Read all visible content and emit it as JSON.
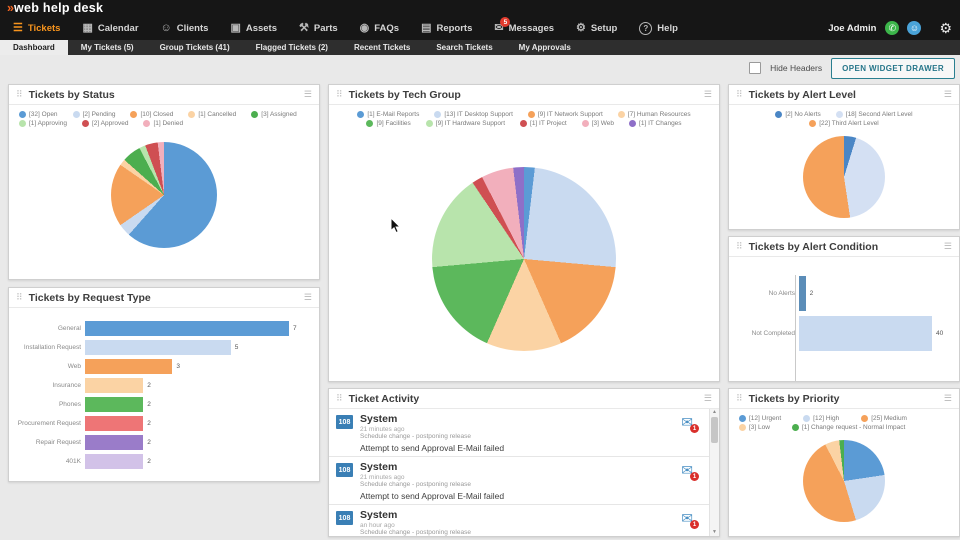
{
  "icons": {
    "drag": "⠿",
    "menu": "☰",
    "mail": "✉",
    "arrow_up": "▲",
    "arrow_down": "▼",
    "logo_flame": "»"
  },
  "topbar": {
    "logo_text": "web help desk",
    "user_name": "Joe Admin",
    "nav": [
      {
        "label": "Tickets",
        "glyph": "☰",
        "icon": "tickets-icon",
        "active": true
      },
      {
        "label": "Calendar",
        "glyph": "▦",
        "icon": "calendar-icon"
      },
      {
        "label": "Clients",
        "glyph": "☺",
        "icon": "clients-icon"
      },
      {
        "label": "Assets",
        "glyph": "▣",
        "icon": "assets-icon"
      },
      {
        "label": "Parts",
        "glyph": "⚒",
        "icon": "parts-icon"
      },
      {
        "label": "FAQs",
        "glyph": "◉",
        "icon": "faqs-icon"
      },
      {
        "label": "Reports",
        "glyph": "▤",
        "icon": "reports-icon"
      },
      {
        "label": "Messages",
        "glyph": "✉",
        "icon": "messages-icon",
        "badge": "5"
      },
      {
        "label": "Setup",
        "glyph": "⚙",
        "icon": "setup-icon"
      },
      {
        "label": "Help",
        "glyph": "?",
        "icon": "help-icon",
        "circled": true
      }
    ],
    "user_icons": [
      {
        "name": "availability-phone-icon",
        "glyph": "✆",
        "bg": "#3cb54a"
      },
      {
        "name": "account-person-icon",
        "glyph": "☺",
        "bg": "#4aa3d8"
      }
    ]
  },
  "tabs": [
    {
      "label": "Dashboard",
      "active": true
    },
    {
      "label": "My Tickets (5)"
    },
    {
      "label": "Group Tickets (41)"
    },
    {
      "label": "Flagged Tickets (2)"
    },
    {
      "label": "Recent Tickets"
    },
    {
      "label": "Search Tickets"
    },
    {
      "label": "My Approvals"
    }
  ],
  "toolbar": {
    "hide_headers_label": "Hide Headers",
    "open_widget_drawer_label": "OPEN WIDGET DRAWER"
  },
  "chart_data": [
    {
      "id": "status",
      "type": "pie",
      "title": "Tickets by Status",
      "legend_position": "top",
      "series": [
        {
          "label": "Open",
          "value": 32,
          "color": "#5b9bd5"
        },
        {
          "label": "Pending",
          "value": 2,
          "color": "#c9daf0"
        },
        {
          "label": "Closed",
          "value": 10,
          "color": "#f5a15a"
        },
        {
          "label": "Cancelled",
          "value": 1,
          "color": "#fbd3a4"
        },
        {
          "label": "Assigned",
          "value": 3,
          "color": "#4cae4f"
        },
        {
          "label": "Approving",
          "value": 1,
          "color": "#b8e4ac"
        },
        {
          "label": "Approved",
          "value": 2,
          "color": "#cf4f52"
        },
        {
          "label": "Denied",
          "value": 1,
          "color": "#f2afbc"
        }
      ]
    },
    {
      "id": "techgroup",
      "type": "pie",
      "title": "Tickets by Tech Group",
      "legend_position": "top",
      "series": [
        {
          "label": "E-Mail Reports",
          "value": 1,
          "color": "#5b9bd5"
        },
        {
          "label": "IT Desktop Support",
          "value": 13,
          "color": "#c9daf0"
        },
        {
          "label": "IT Network Support",
          "value": 9,
          "color": "#f5a15a"
        },
        {
          "label": "Human Resources",
          "value": 7,
          "color": "#fbd3a4"
        },
        {
          "label": "Facilities",
          "value": 9,
          "color": "#5cb85c"
        },
        {
          "label": "IT Hardware Support",
          "value": 9,
          "color": "#b8e4ac"
        },
        {
          "label": "IT Project",
          "value": 1,
          "color": "#cf4f52"
        },
        {
          "label": "Web",
          "value": 3,
          "color": "#f2afbc"
        },
        {
          "label": "IT Changes",
          "value": 1,
          "color": "#8e6fc8"
        }
      ]
    },
    {
      "id": "alertlevel",
      "type": "pie",
      "title": "Tickets by Alert Level",
      "legend_position": "top",
      "series": [
        {
          "label": "No Alerts",
          "value": 2,
          "color": "#4a86c5"
        },
        {
          "label": "Second Alert Level",
          "value": 18,
          "color": "#d4e0f3"
        },
        {
          "label": "Third Alert Level",
          "value": 22,
          "color": "#f5a15a"
        }
      ]
    },
    {
      "id": "alertcond",
      "type": "bar",
      "title": "Tickets by Alert Condition",
      "xlim": [
        0,
        40
      ],
      "grid": false,
      "series": [
        {
          "label": "No Alerts",
          "value": 2,
          "color": "#5b8db8"
        },
        {
          "label": "Not Completed",
          "value": 40,
          "color": "#c9daf0"
        }
      ]
    },
    {
      "id": "reqtype",
      "type": "bar",
      "title": "Tickets by Request Type",
      "xlim": [
        0,
        7
      ],
      "grid": false,
      "series": [
        {
          "label": "General",
          "value": 7,
          "color": "#5b9bd5"
        },
        {
          "label": "Installation Request",
          "value": 5,
          "color": "#c9daf0"
        },
        {
          "label": "Web",
          "value": 3,
          "color": "#f5a15a"
        },
        {
          "label": "Insurance",
          "value": 2,
          "color": "#fbd3a4"
        },
        {
          "label": "Phones",
          "value": 2,
          "color": "#5cb85c"
        },
        {
          "label": "Procurement Request",
          "value": 2,
          "color": "#ee7576"
        },
        {
          "label": "Repair Request",
          "value": 2,
          "color": "#9a7cc9"
        },
        {
          "label": "401K",
          "value": 2,
          "color": "#d2c2e8"
        }
      ]
    },
    {
      "id": "priority",
      "type": "pie",
      "title": "Tickets by Priority",
      "legend_position": "top",
      "series": [
        {
          "label": "Urgent",
          "value": 12,
          "color": "#5b9bd5"
        },
        {
          "label": "High",
          "value": 12,
          "color": "#c9daf0"
        },
        {
          "label": "Medium",
          "value": 25,
          "color": "#f5a15a"
        },
        {
          "label": "Low",
          "value": 3,
          "color": "#fbd3a4"
        },
        {
          "label": "Change request - Normal Impact",
          "value": 1,
          "color": "#4cae4f"
        }
      ]
    }
  ],
  "activity": {
    "title": "Ticket Activity",
    "rows": [
      {
        "ticket_id": "108",
        "title": "System",
        "time": "21 minutes ago",
        "subtitle": "Schedule change - postponing release",
        "message": "Attempt to send Approval E-Mail failed",
        "mail_badge": "1"
      },
      {
        "ticket_id": "108",
        "title": "System",
        "time": "21 minutes ago",
        "subtitle": "Schedule change - postponing release",
        "message": "Attempt to send Approval E-Mail failed",
        "mail_badge": "1"
      },
      {
        "ticket_id": "108",
        "title": "System",
        "time": "an hour ago",
        "subtitle": "Schedule change - postponing release",
        "message": "",
        "mail_badge": "1"
      }
    ]
  }
}
